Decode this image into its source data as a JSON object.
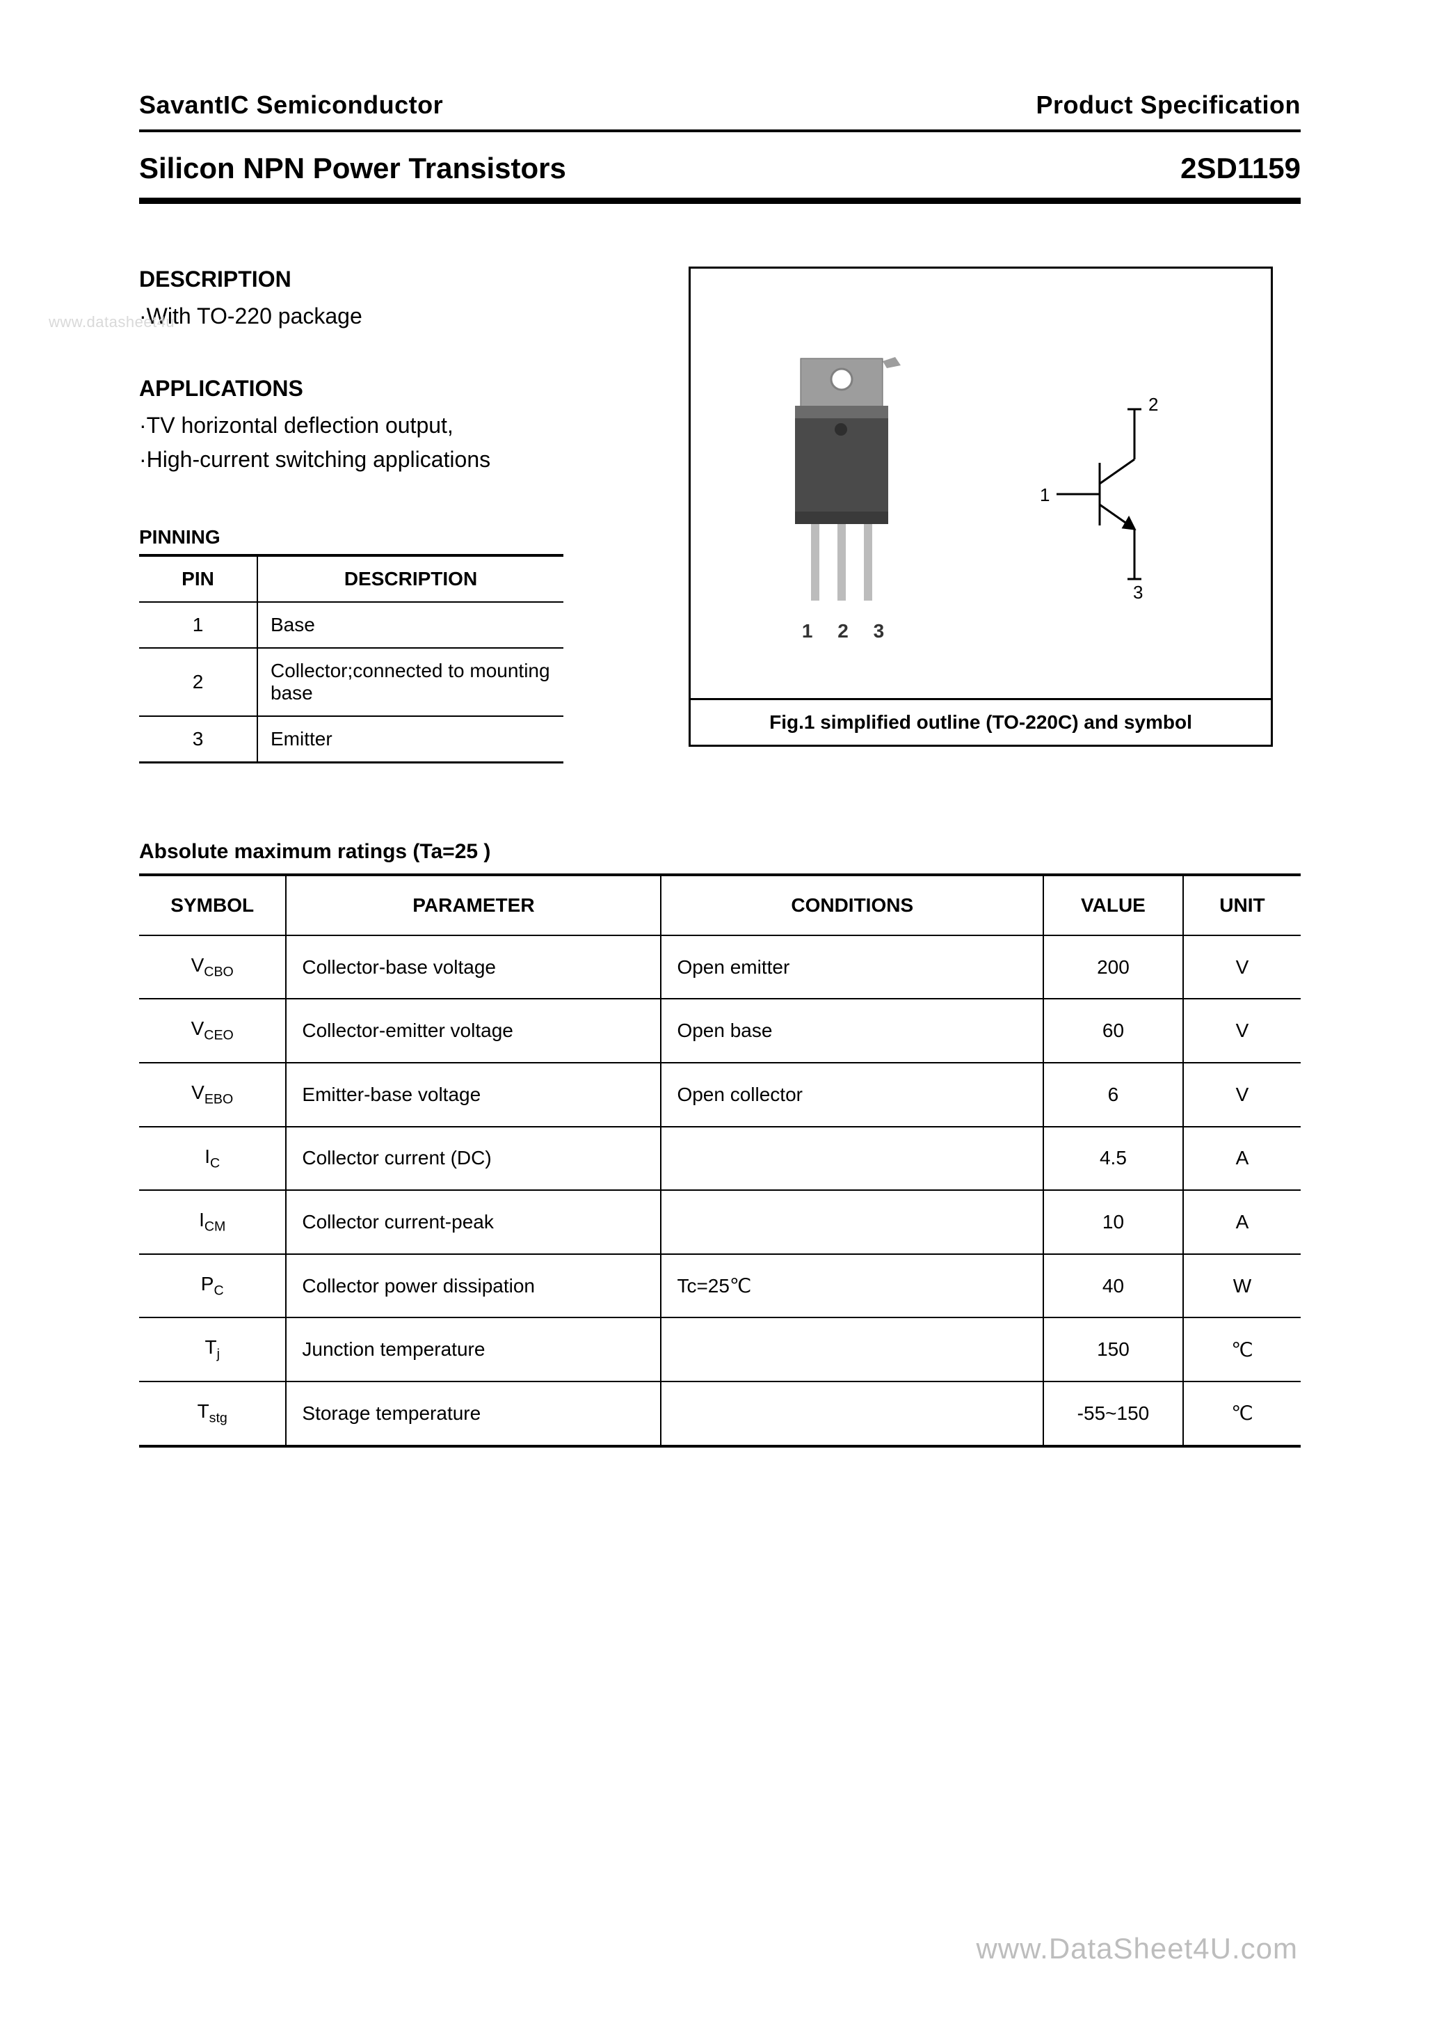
{
  "header": {
    "company": "SavantIC Semiconductor",
    "doc_type": "Product Specification",
    "product_title": "Silicon NPN Power Transistors",
    "part_number": "2SD1159"
  },
  "watermark_left": "www.datasheet4u",
  "description": {
    "heading": "DESCRIPTION",
    "lines": [
      "·With TO-220 package"
    ]
  },
  "applications": {
    "heading": "APPLICATIONS",
    "lines": [
      "·TV horizontal deflection output,",
      "·High-current switching applications"
    ]
  },
  "pinning": {
    "heading": "PINNING",
    "columns": [
      "PIN",
      "DESCRIPTION"
    ],
    "rows": [
      {
        "pin": "1",
        "desc": "Base"
      },
      {
        "pin": "2",
        "desc": "Collector;connected to mounting base"
      },
      {
        "pin": "3",
        "desc": "Emitter"
      }
    ]
  },
  "figure": {
    "caption": "Fig.1 simplified outline (TO-220C) and symbol",
    "package": {
      "tab_fill": "#9d9d9d",
      "body_fill": "#4a4a4a",
      "body_highlight": "#6b6b6b",
      "pin_fill": "#bcbcbc",
      "hole_fill": "#ffffff",
      "hole_shadow": "#808080",
      "pin_labels": "1 2 3"
    },
    "symbol": {
      "stroke": "#000000",
      "stroke_width": 3,
      "labels": {
        "base": "1",
        "collector": "2",
        "emitter": "3"
      },
      "label_fontsize": 26
    }
  },
  "ratings": {
    "heading": "Absolute maximum ratings (Ta=25  )",
    "columns": [
      "SYMBOL",
      "PARAMETER",
      "CONDITIONS",
      "VALUE",
      "UNIT"
    ],
    "rows": [
      {
        "symbol": "V",
        "sub": "CBO",
        "parameter": "Collector-base voltage",
        "conditions": "Open emitter",
        "value": "200",
        "unit": "V"
      },
      {
        "symbol": "V",
        "sub": "CEO",
        "parameter": "Collector-emitter voltage",
        "conditions": "Open base",
        "value": "60",
        "unit": "V"
      },
      {
        "symbol": "V",
        "sub": "EBO",
        "parameter": "Emitter-base voltage",
        "conditions": "Open collector",
        "value": "6",
        "unit": "V"
      },
      {
        "symbol": "I",
        "sub": "C",
        "parameter": "Collector current (DC)",
        "conditions": "",
        "value": "4.5",
        "unit": "A"
      },
      {
        "symbol": "I",
        "sub": "CM",
        "parameter": "Collector current-peak",
        "conditions": "",
        "value": "10",
        "unit": "A"
      },
      {
        "symbol": "P",
        "sub": "C",
        "parameter": "Collector power dissipation",
        "conditions": "Tc=25℃",
        "value": "40",
        "unit": "W"
      },
      {
        "symbol": "T",
        "sub": "j",
        "parameter": "Junction temperature",
        "conditions": "",
        "value": "150",
        "unit": "℃"
      },
      {
        "symbol": "T",
        "sub": "stg",
        "parameter": "Storage temperature",
        "conditions": "",
        "value": "-55~150",
        "unit": "℃"
      }
    ]
  },
  "footer_watermark": "www.DataSheet4U.com"
}
